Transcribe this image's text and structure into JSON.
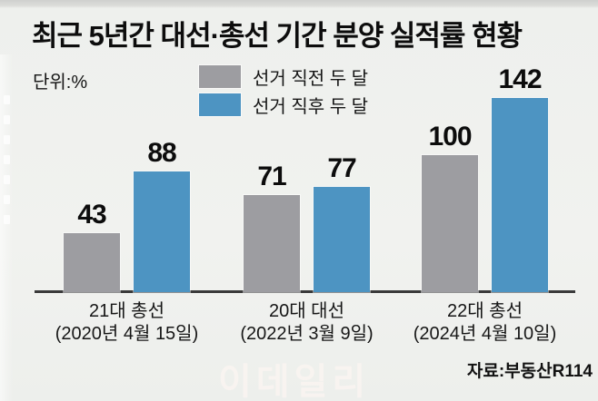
{
  "header": {
    "title": "최근 5년간 대선·총선 기간 분양 실적률 현황",
    "unit_label": "단위:%"
  },
  "legend": {
    "items": [
      {
        "label": "선거 직전 두 달",
        "color": "#9d9da1"
      },
      {
        "label": "선거 직후 두 달",
        "color": "#4d94c2"
      }
    ]
  },
  "footer": {
    "source": "자료:부동산R114",
    "watermark": "이데일리"
  },
  "chart_data": {
    "type": "bar",
    "title": "최근 5년간 대선·총선 기간 분양 실적률 현황",
    "unit": "%",
    "categories": [
      {
        "name": "21대 총선",
        "date": "(2020년 4월 15일)"
      },
      {
        "name": "20대 대선",
        "date": "(2022년 3월 9일)"
      },
      {
        "name": "22대 총선",
        "date": "(2024년 4월 10일)"
      }
    ],
    "series": [
      {
        "name": "선거 직전 두 달",
        "color": "#9d9da1",
        "values": [
          43,
          71,
          100
        ]
      },
      {
        "name": "선거 직후 두 달",
        "color": "#4d94c2",
        "values": [
          88,
          77,
          142
        ]
      }
    ],
    "value_labels": true,
    "axis": {
      "style": "baseline-only",
      "ylim": [
        0,
        150
      ],
      "grid": false
    },
    "legend_position": "top-center"
  }
}
